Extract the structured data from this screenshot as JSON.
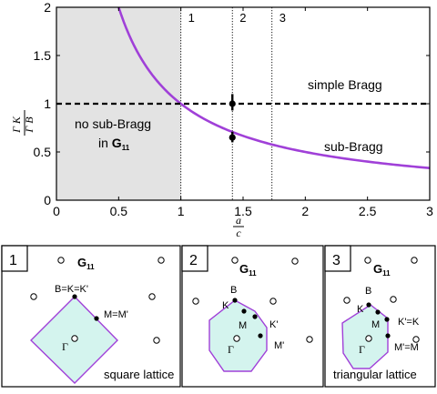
{
  "figure": {
    "chart_data": {
      "type": "line",
      "title": "",
      "xlabel": {
        "num": "a",
        "den": "c"
      },
      "ylabel": {
        "num": "Γ K",
        "den": "Γ B"
      },
      "xlim": [
        0,
        3
      ],
      "ylim": [
        0,
        2
      ],
      "xticks": [
        "0",
        "0.5",
        "1",
        "1.5",
        "2",
        "2.5",
        "3"
      ],
      "yticks": [
        "0",
        "0.5",
        "1",
        "1.5",
        "2"
      ],
      "grid": false,
      "shaded_region": {
        "x_range": [
          0,
          1
        ],
        "color": "#e3e3e3"
      },
      "vertical_lines": [
        {
          "x": 1,
          "label": "1"
        },
        {
          "x": 1.414,
          "label": "2"
        },
        {
          "x": 1.732,
          "label": "3"
        }
      ],
      "series": [
        {
          "name": "sub-Bragg",
          "color": "#a040d8",
          "style": "solid",
          "x_start": 0.5,
          "x_end": 3.0,
          "sample_points": [
            [
              0.5,
              2.0
            ],
            [
              0.6,
              1.667
            ],
            [
              0.8,
              1.25
            ],
            [
              1.0,
              1.0
            ],
            [
              1.25,
              0.8
            ],
            [
              1.5,
              0.667
            ],
            [
              2.0,
              0.5
            ],
            [
              2.5,
              0.4
            ],
            [
              3.0,
              0.333
            ]
          ]
        },
        {
          "name": "simple Bragg",
          "color": "#000000",
          "style": "dashed",
          "x": [
            0,
            3
          ],
          "y": [
            1,
            1
          ]
        }
      ],
      "points": [
        {
          "x": 1.414,
          "y": 1.0,
          "error": [
            0.93,
            1.1
          ]
        },
        {
          "x": 1.414,
          "y": 0.65,
          "error": [
            0.6,
            0.71
          ]
        }
      ],
      "annotations": [
        {
          "text": "simple Bragg"
        },
        {
          "text": "sub-Bragg"
        },
        {
          "line1": "no sub-Bragg",
          "line2": "in",
          "line2_bold": "G",
          "line2_sub": "11"
        }
      ]
    },
    "panels": [
      {
        "number": "1",
        "g_label": "G",
        "g_sub": "11",
        "point_labels": {
          "b": "B=K=K'",
          "m": "M=M'",
          "gamma": "Γ"
        },
        "caption": "square lattice"
      },
      {
        "number": "2",
        "g_label": "G",
        "g_sub": "11",
        "point_labels": {
          "b": "B",
          "k": "K",
          "m": "M",
          "kp": "K'",
          "mp": "M'",
          "gamma": "Γ"
        },
        "caption": ""
      },
      {
        "number": "3",
        "g_label": "G",
        "g_sub": "11",
        "point_labels": {
          "b": "B",
          "k": "K",
          "m": "M",
          "kp": "K'=K",
          "mp": "M'=M",
          "gamma": "Γ"
        },
        "caption": "triangular lattice"
      }
    ],
    "colors": {
      "zone_fill": "#d4f4ee",
      "zone_stroke": "#a040d8",
      "curve": "#a040d8",
      "shade": "#e3e3e3"
    }
  }
}
